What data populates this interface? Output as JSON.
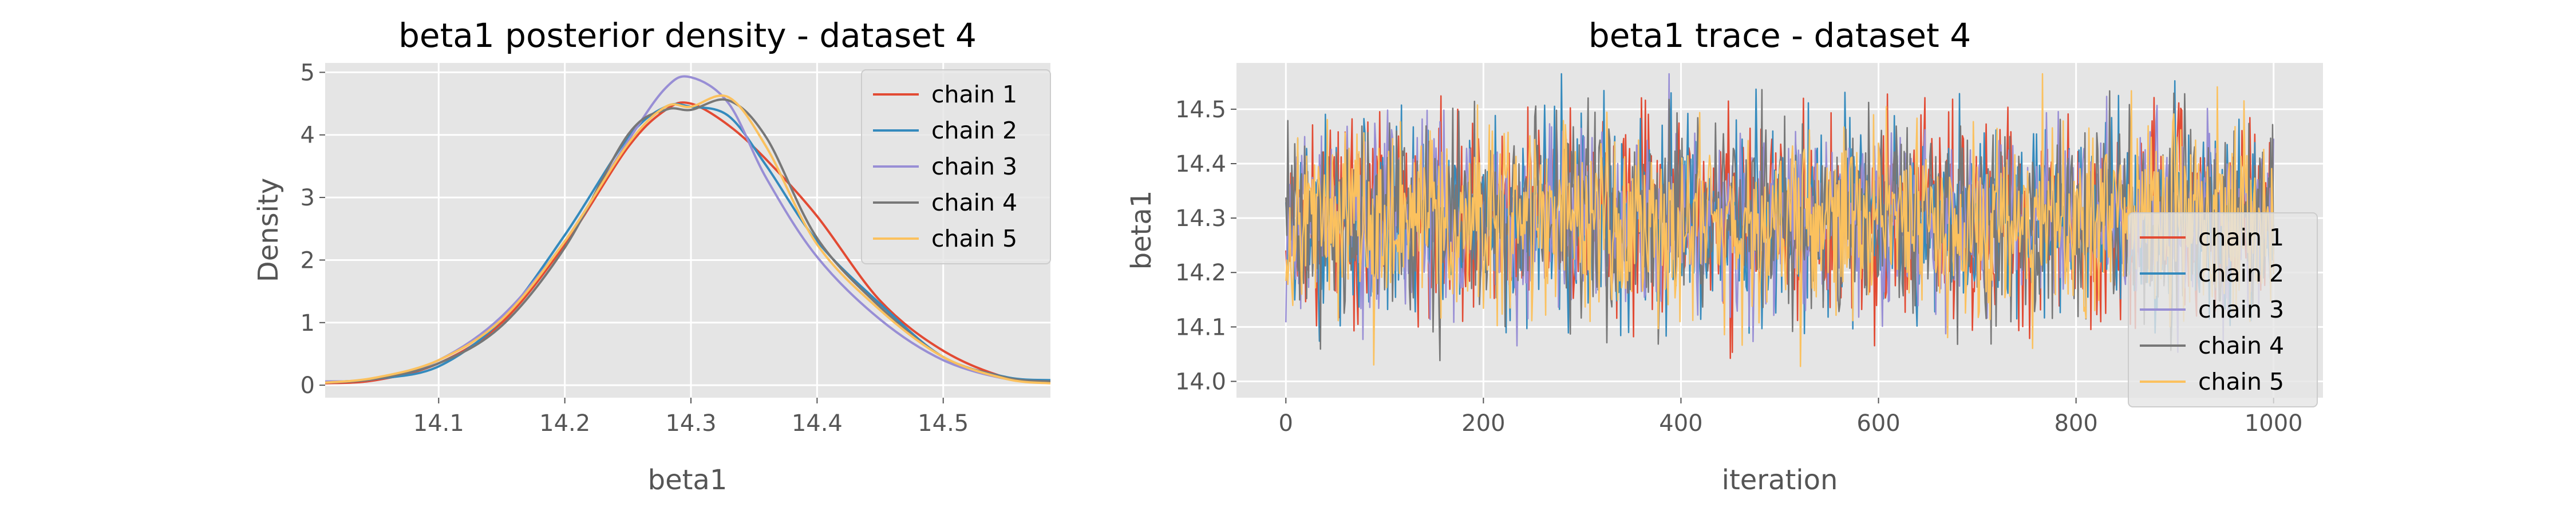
{
  "chart_data": [
    {
      "type": "line",
      "title": "beta1 posterior density - dataset 4",
      "xlabel": "beta1",
      "ylabel": "Density",
      "xlim": [
        14.01,
        14.585
      ],
      "ylim": [
        -0.2,
        5.15
      ],
      "xticks": [
        14.1,
        14.2,
        14.3,
        14.4,
        14.5
      ],
      "yticks": [
        0,
        1,
        2,
        3,
        4,
        5
      ],
      "grid": true,
      "legend": "top-right",
      "series": [
        {
          "name": "chain 1",
          "color": "#E24A33",
          "x": [
            14.01,
            14.05,
            14.1,
            14.15,
            14.2,
            14.25,
            14.28,
            14.3,
            14.33,
            14.36,
            14.4,
            14.45,
            14.5,
            14.55,
            14.585
          ],
          "y": [
            0.03,
            0.08,
            0.35,
            1.0,
            2.25,
            3.8,
            4.4,
            4.5,
            4.15,
            3.6,
            2.7,
            1.35,
            0.55,
            0.12,
            0.05
          ]
        },
        {
          "name": "chain 2",
          "color": "#348ABD",
          "x": [
            14.01,
            14.05,
            14.1,
            14.15,
            14.2,
            14.25,
            14.28,
            14.3,
            14.33,
            14.36,
            14.4,
            14.45,
            14.5,
            14.55,
            14.585
          ],
          "y": [
            0.05,
            0.1,
            0.3,
            1.05,
            2.4,
            3.95,
            4.45,
            4.45,
            4.3,
            3.5,
            2.3,
            1.3,
            0.45,
            0.13,
            0.08
          ]
        },
        {
          "name": "chain 3",
          "color": "#988ED5",
          "x": [
            14.01,
            14.05,
            14.1,
            14.15,
            14.2,
            14.25,
            14.28,
            14.3,
            14.33,
            14.36,
            14.4,
            14.45,
            14.5,
            14.55,
            14.585
          ],
          "y": [
            0.06,
            0.1,
            0.4,
            1.1,
            2.3,
            3.9,
            4.75,
            4.92,
            4.5,
            3.3,
            2.05,
            1.05,
            0.4,
            0.1,
            0.06
          ]
        },
        {
          "name": "chain 4",
          "color": "#777777",
          "x": [
            14.01,
            14.05,
            14.1,
            14.15,
            14.2,
            14.25,
            14.28,
            14.3,
            14.33,
            14.36,
            14.4,
            14.45,
            14.5,
            14.55,
            14.585
          ],
          "y": [
            0.04,
            0.1,
            0.35,
            0.95,
            2.2,
            4.0,
            4.4,
            4.4,
            4.55,
            3.95,
            2.35,
            1.25,
            0.45,
            0.12,
            0.06
          ]
        },
        {
          "name": "chain 5",
          "color": "#FBC15E",
          "x": [
            14.01,
            14.05,
            14.1,
            14.15,
            14.2,
            14.25,
            14.28,
            14.3,
            14.33,
            14.36,
            14.4,
            14.45,
            14.5,
            14.55,
            14.585
          ],
          "y": [
            0.04,
            0.12,
            0.4,
            1.05,
            2.3,
            3.85,
            4.45,
            4.45,
            4.6,
            3.8,
            2.25,
            1.2,
            0.45,
            0.1,
            0.03
          ]
        }
      ]
    },
    {
      "type": "line",
      "title": "beta1 trace - dataset 4",
      "xlabel": "iteration",
      "ylabel": "beta1",
      "xlim": [
        -50,
        1050
      ],
      "ylim": [
        13.97,
        14.585
      ],
      "xticks": [
        0,
        200,
        400,
        600,
        800,
        1000
      ],
      "yticks": [
        14.0,
        14.1,
        14.2,
        14.3,
        14.4,
        14.5
      ],
      "grid": true,
      "legend": "lower-right",
      "iterations": 1000,
      "series": [
        {
          "name": "chain 1",
          "color": "#E24A33",
          "mean": 14.3,
          "sd": 0.085,
          "seed": 11
        },
        {
          "name": "chain 2",
          "color": "#348ABD",
          "mean": 14.3,
          "sd": 0.09,
          "seed": 23
        },
        {
          "name": "chain 3",
          "color": "#988ED5",
          "mean": 14.3,
          "sd": 0.085,
          "seed": 37
        },
        {
          "name": "chain 4",
          "color": "#777777",
          "mean": 14.3,
          "sd": 0.085,
          "seed": 41
        },
        {
          "name": "chain 5",
          "color": "#FBC15E",
          "mean": 14.3,
          "sd": 0.085,
          "seed": 53
        }
      ]
    }
  ]
}
